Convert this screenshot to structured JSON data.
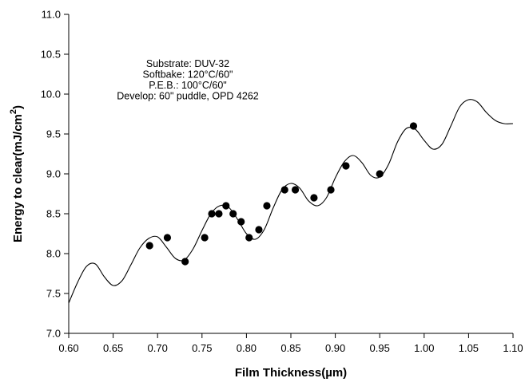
{
  "chart_data": {
    "type": "scatter",
    "xlabel": "Film Thickness(µm)",
    "ylabel": "Energy to clear(mJ/cm²)",
    "ylabel_main": "Energy to clear(mJ/cm",
    "ylabel_sup": "2",
    "ylabel_close": ")",
    "xlim": [
      0.6,
      1.1
    ],
    "ylim": [
      7.0,
      11.0
    ],
    "x_ticks": [
      "0.60",
      "0.65",
      "0.70",
      "0.75",
      "0.80",
      "0.85",
      "0.90",
      "0.95",
      "1.00",
      "1.05",
      "1.10"
    ],
    "y_ticks": [
      "7.0",
      "7.5",
      "8.0",
      "8.5",
      "9.0",
      "9.5",
      "10.0",
      "10.5",
      "11.0"
    ],
    "grid": false,
    "annotations": [
      "Substrate: DUV-32",
      "Softbake: 120°C/60\"",
      "P.E.B.: 100°C/60\"",
      "Develop: 60\" puddle, OPD 4262"
    ],
    "series": [
      {
        "kind": "points",
        "x": [
          0.691,
          0.711,
          0.731,
          0.753,
          0.761,
          0.769,
          0.777,
          0.785,
          0.794,
          0.803,
          0.814,
          0.823,
          0.843,
          0.855,
          0.876,
          0.895,
          0.912,
          0.95,
          0.988
        ],
        "y": [
          8.1,
          8.2,
          7.9,
          8.2,
          8.5,
          8.5,
          8.6,
          8.5,
          8.4,
          8.2,
          8.3,
          8.6,
          8.8,
          8.8,
          8.7,
          8.8,
          9.1,
          9.0,
          9.6
        ]
      },
      {
        "kind": "curve",
        "x": [
          0.6,
          0.61,
          0.62,
          0.63,
          0.64,
          0.65,
          0.66,
          0.67,
          0.68,
          0.69,
          0.7,
          0.71,
          0.72,
          0.73,
          0.74,
          0.75,
          0.76,
          0.77,
          0.78,
          0.79,
          0.8,
          0.81,
          0.82,
          0.83,
          0.84,
          0.85,
          0.86,
          0.87,
          0.88,
          0.89,
          0.9,
          0.91,
          0.92,
          0.93,
          0.94,
          0.95,
          0.96,
          0.97,
          0.98,
          0.99,
          1.0,
          1.01,
          1.02,
          1.03,
          1.04,
          1.05,
          1.06,
          1.07,
          1.08,
          1.09,
          1.1
        ],
        "y": [
          7.38,
          7.64,
          7.84,
          7.87,
          7.71,
          7.6,
          7.66,
          7.86,
          8.07,
          8.19,
          8.21,
          8.08,
          7.94,
          7.92,
          8.06,
          8.29,
          8.5,
          8.6,
          8.58,
          8.43,
          8.25,
          8.18,
          8.3,
          8.57,
          8.8,
          8.88,
          8.82,
          8.66,
          8.6,
          8.7,
          8.95,
          9.15,
          9.23,
          9.14,
          8.98,
          8.96,
          9.12,
          9.4,
          9.57,
          9.56,
          9.42,
          9.31,
          9.37,
          9.6,
          9.84,
          9.93,
          9.9,
          9.77,
          9.67,
          9.63,
          9.63
        ]
      }
    ]
  }
}
